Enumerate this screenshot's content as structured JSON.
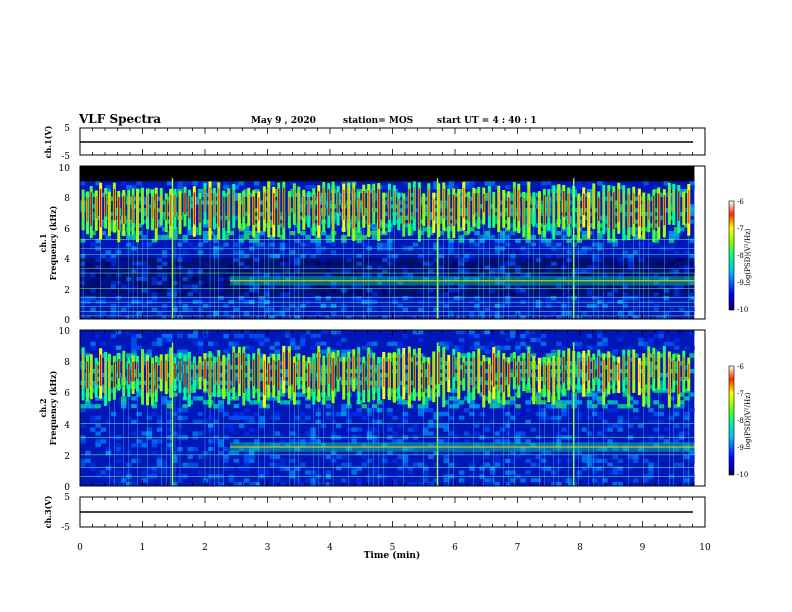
{
  "header": {
    "title": "VLF Spectra",
    "date": "May 9  , 2020",
    "station": "station= MOS",
    "start": "start  UT =   4 : 40 : 1"
  },
  "chart_data": [
    {
      "type": "line",
      "panel": "ch1-waveform",
      "ylabel": "ch.1(V)",
      "yticks": [
        "5",
        "-5"
      ],
      "ylim": [
        -5,
        5
      ],
      "series": [
        {
          "x": [
            0,
            9.83
          ],
          "y": [
            0,
            0
          ]
        }
      ]
    },
    {
      "type": "heatmap",
      "panel": "ch1-spectrogram",
      "ylabel_line1": "ch.1",
      "ylabel_line2": "Frequency  (kHz)",
      "ylim": [
        0,
        10
      ],
      "yticks": [
        "0",
        "2",
        "4",
        "6",
        "8",
        "10"
      ],
      "x_extent_min": 9.83,
      "colorbar": {
        "label": "log(PSD)(V²/Hz)",
        "ticks": [
          "-6",
          "-7",
          "-8",
          "-9",
          "-10"
        ],
        "range": [
          -10,
          -6
        ]
      },
      "spheric_times_min": [
        0.05,
        0.12,
        0.18,
        0.26,
        0.33,
        0.41,
        0.47,
        0.55,
        0.62,
        0.7,
        0.78,
        0.85,
        0.92,
        1.0,
        1.08,
        1.16,
        1.22,
        1.3,
        1.38,
        1.45,
        1.52,
        1.6,
        1.68,
        1.75,
        1.83,
        1.92,
        2.0,
        2.08,
        2.15,
        2.22,
        2.3,
        2.38,
        2.46,
        2.55,
        2.62,
        2.7,
        2.78,
        2.86,
        2.95,
        3.02,
        3.1,
        3.18,
        3.26,
        3.35,
        3.43,
        3.5,
        3.58,
        3.66,
        3.74,
        3.82,
        3.9,
        3.98,
        4.05,
        4.13,
        4.22,
        4.3,
        4.38,
        4.46,
        4.54,
        4.62,
        4.7,
        4.78,
        4.86,
        4.95,
        5.03,
        5.1,
        5.18,
        5.27,
        5.35,
        5.43,
        5.5,
        5.58,
        5.66,
        5.74,
        5.82,
        5.9,
        5.98,
        6.06,
        6.14,
        6.22,
        6.3,
        6.38,
        6.46,
        6.55,
        6.62,
        6.7,
        6.78,
        6.86,
        6.95,
        7.02,
        7.1,
        7.18,
        7.26,
        7.35,
        7.43,
        7.5,
        7.58,
        7.66,
        7.74,
        7.82,
        7.9,
        7.98,
        8.06,
        8.14,
        8.22,
        8.3,
        8.38,
        8.46,
        8.54,
        8.62,
        8.7,
        8.78,
        8.86,
        8.95,
        9.02,
        9.1,
        9.18,
        9.26,
        9.35,
        9.43,
        9.5,
        9.58,
        9.66,
        9.74
      ],
      "emission_band_khz": [
        2.2,
        2.8
      ],
      "emission_start_min": 2.4
    },
    {
      "type": "heatmap",
      "panel": "ch2-spectrogram",
      "ylabel_line1": "ch.2",
      "ylabel_line2": "Frequency  (kHz)",
      "ylim": [
        0,
        10
      ],
      "yticks": [
        "0",
        "2",
        "4",
        "6",
        "8",
        "10"
      ],
      "x_extent_min": 9.83,
      "colorbar": {
        "label": "log(PSD)(V²/Hz)",
        "ticks": [
          "-6",
          "-7",
          "-8",
          "-9",
          "-10"
        ],
        "range": [
          -10,
          -6
        ]
      },
      "emission_band_khz": [
        2.2,
        2.8
      ],
      "emission_start_min": 2.4
    },
    {
      "type": "line",
      "panel": "ch3-waveform",
      "ylabel": "ch.3(V)",
      "yticks": [
        "5",
        "-5"
      ],
      "ylim": [
        -5,
        5
      ],
      "series": [
        {
          "x": [
            0,
            9.83
          ],
          "y": [
            0,
            0
          ]
        }
      ],
      "xlabel": "Time  (min)",
      "xticks": [
        "0",
        "1",
        "2",
        "3",
        "4",
        "5",
        "6",
        "7",
        "8",
        "9",
        "10"
      ],
      "xlim": [
        0,
        10
      ]
    }
  ]
}
